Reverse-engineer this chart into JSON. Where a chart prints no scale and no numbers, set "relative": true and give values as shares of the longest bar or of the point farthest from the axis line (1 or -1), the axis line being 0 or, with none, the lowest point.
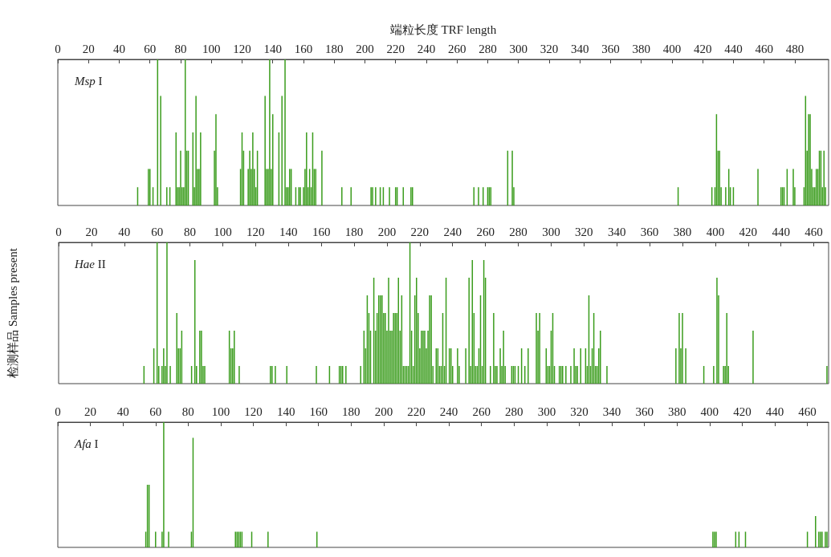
{
  "chart_data": [
    {
      "type": "bar",
      "relative": true,
      "title": "Msp I",
      "xlabel": "端粒长度 TRF length",
      "color": "#3a9c1c",
      "xlim": [
        0,
        502
      ],
      "xticks": [
        0,
        20,
        40,
        60,
        80,
        100,
        120,
        140,
        160,
        180,
        200,
        220,
        240,
        260,
        280,
        300,
        320,
        340,
        360,
        380,
        400,
        420,
        440,
        460,
        480
      ],
      "x": [
        52,
        59,
        60,
        62,
        65,
        67,
        71,
        73,
        77,
        78,
        79,
        80,
        81,
        82,
        83,
        84,
        85,
        88,
        89,
        90,
        91,
        92,
        93,
        102,
        103,
        104,
        119,
        120,
        121,
        124,
        125,
        126,
        127,
        128,
        129,
        130,
        135,
        136,
        137,
        138,
        139,
        140,
        144,
        146,
        148,
        149,
        150,
        151,
        152,
        155,
        157,
        158,
        160,
        161,
        162,
        163,
        164,
        165,
        166,
        167,
        168,
        172,
        185,
        191,
        204,
        205,
        207,
        210,
        212,
        216,
        220,
        221,
        225,
        230,
        231,
        271,
        274,
        277,
        280,
        281,
        282,
        293,
        296,
        297,
        404,
        426,
        428,
        429,
        430,
        431,
        432,
        435,
        437,
        438,
        440,
        456,
        471,
        472,
        473,
        475,
        479,
        480,
        486,
        487,
        488,
        489,
        490,
        491,
        492,
        493,
        494,
        495,
        496,
        497,
        498,
        499,
        500
      ],
      "values": [
        0.125,
        0.25,
        0.25,
        0.125,
        1,
        0.75,
        0.125,
        0.125,
        0.5,
        0.125,
        0.125,
        0.375,
        0.125,
        0.125,
        1,
        0.375,
        0.375,
        0.5,
        0.125,
        0.75,
        0.25,
        0.25,
        0.5,
        0.375,
        0.625,
        0.125,
        0.25,
        0.5,
        0.375,
        0.25,
        0.375,
        0.25,
        0.5,
        0.25,
        0.125,
        0.375,
        0.75,
        0.25,
        0.25,
        1,
        0.25,
        0.625,
        0.5,
        0.75,
        1,
        0.125,
        0.125,
        0.25,
        0.25,
        0.125,
        0.125,
        0.125,
        0.125,
        0.25,
        0.5,
        0.125,
        0.25,
        0.125,
        0.5,
        0.25,
        0.25,
        0.375,
        0.125,
        0.125,
        0.125,
        0.125,
        0.125,
        0.125,
        0.125,
        0.125,
        0.125,
        0.125,
        0.125,
        0.125,
        0.125,
        0.125,
        0.125,
        0.125,
        0.125,
        0.125,
        0.125,
        0.375,
        0.375,
        0.125,
        0.125,
        0.125,
        0.125,
        0.625,
        0.375,
        0.375,
        0.125,
        0.125,
        0.25,
        0.125,
        0.125,
        0.25,
        0.125,
        0.125,
        0.125,
        0.25,
        0.25,
        0.125,
        0.125,
        0.75,
        0.375,
        0.625,
        0.625,
        0.25,
        0.125,
        0.125,
        0.25,
        0.25,
        0.375,
        0.375,
        0.125,
        0.375,
        0.125
      ]
    },
    {
      "type": "bar",
      "relative": true,
      "title": "Hae II",
      "ylabel": "检测样品 Samples present",
      "color": "#3a9c1c",
      "xlim": [
        0,
        469
      ],
      "xticks": [
        0,
        20,
        40,
        60,
        80,
        100,
        120,
        140,
        160,
        180,
        200,
        220,
        240,
        260,
        280,
        300,
        320,
        340,
        360,
        380,
        400,
        420,
        440,
        460
      ],
      "x": [
        52,
        58,
        60,
        61,
        63,
        64,
        65,
        66,
        68,
        72,
        73,
        74,
        75,
        81,
        83,
        84,
        86,
        87,
        88,
        89,
        104,
        105,
        106,
        107,
        110,
        129,
        130,
        132,
        139,
        157,
        165,
        171,
        172,
        173,
        175,
        184,
        186,
        187,
        188,
        189,
        190,
        192,
        193,
        194,
        195,
        196,
        197,
        198,
        199,
        200,
        201,
        202,
        203,
        204,
        205,
        206,
        207,
        208,
        209,
        210,
        211,
        212,
        213,
        214,
        215,
        216,
        217,
        218,
        219,
        220,
        221,
        222,
        223,
        224,
        225,
        226,
        227,
        228,
        230,
        231,
        232,
        233,
        234,
        235,
        236,
        238,
        239,
        240,
        243,
        244,
        248,
        250,
        251,
        252,
        253,
        254,
        255,
        256,
        257,
        258,
        259,
        260,
        263,
        265,
        266,
        267,
        269,
        270,
        271,
        272,
        276,
        277,
        278,
        280,
        282,
        284,
        286,
        291,
        292,
        293,
        297,
        298,
        299,
        300,
        301,
        302,
        305,
        306,
        307,
        309,
        312,
        314,
        315,
        316,
        318,
        321,
        322,
        323,
        324,
        325,
        326,
        327,
        328,
        329,
        330,
        334,
        376,
        378,
        379,
        380,
        382,
        393,
        399,
        401,
        402,
        405,
        406,
        407,
        408,
        423,
        468
      ],
      "values": [
        0.125,
        0.25,
        1,
        0.125,
        0.125,
        0.25,
        0.125,
        1,
        0.125,
        0.5,
        0.25,
        0.25,
        0.375,
        0.125,
        0.875,
        0.125,
        0.375,
        0.375,
        0.125,
        0.125,
        0.375,
        0.25,
        0.25,
        0.375,
        0.125,
        0.125,
        0.125,
        0.125,
        0.125,
        0.125,
        0.125,
        0.125,
        0.125,
        0.125,
        0.125,
        0.125,
        0.375,
        0.25,
        0.625,
        0.5,
        0.375,
        0.75,
        0.375,
        0.5,
        0.625,
        0.625,
        0.625,
        0.5,
        0.5,
        0.375,
        0.75,
        0.375,
        0.375,
        0.5,
        0.5,
        0.5,
        0.75,
        0.375,
        0.625,
        0.125,
        0.125,
        0.125,
        0.125,
        1,
        0.375,
        0.125,
        0.625,
        0.75,
        0.5,
        0.25,
        0.375,
        0.375,
        0.375,
        0.25,
        0.375,
        0.625,
        0.625,
        0.125,
        0.25,
        0.25,
        0.125,
        0.125,
        0.5,
        0.125,
        0.75,
        0.25,
        0.25,
        0.125,
        0.25,
        0.125,
        0.25,
        0.75,
        0.125,
        0.875,
        0.5,
        0.125,
        0.125,
        0.25,
        0.625,
        0.125,
        0.875,
        0.75,
        0.125,
        0.5,
        0.125,
        0.125,
        0.25,
        0.125,
        0.375,
        0.125,
        0.125,
        0.125,
        0.125,
        0.125,
        0.25,
        0.125,
        0.25,
        0.5,
        0.375,
        0.5,
        0.25,
        0.125,
        0.125,
        0.375,
        0.5,
        0.125,
        0.125,
        0.125,
        0.125,
        0.125,
        0.125,
        0.25,
        0.125,
        0.125,
        0.25,
        0.25,
        0.125,
        0.625,
        0.125,
        0.25,
        0.5,
        0.125,
        0.125,
        0.25,
        0.375,
        0.125,
        0.25,
        0.5,
        0.25,
        0.5,
        0.25,
        0.125,
        0.125,
        0.75,
        0.625,
        0.125,
        0.125,
        0.5,
        0.125,
        0.375,
        0.125
      ]
    },
    {
      "type": "bar",
      "relative": true,
      "title": "Afa I",
      "color": "#3a9c1c",
      "xlim": [
        0,
        473
      ],
      "xticks": [
        0,
        20,
        40,
        60,
        80,
        100,
        120,
        140,
        160,
        180,
        200,
        220,
        240,
        260,
        280,
        300,
        320,
        340,
        360,
        380,
        400,
        420,
        440,
        460
      ],
      "x": [
        54,
        55,
        56,
        60,
        64,
        65,
        68,
        82,
        83,
        109,
        110,
        111,
        112,
        113,
        119,
        129,
        159,
        402,
        403,
        404,
        416,
        418,
        422,
        460,
        465,
        467,
        468,
        469,
        471,
        472
      ],
      "values": [
        0.125,
        0.5,
        0.5,
        0.125,
        0.125,
        1,
        0.125,
        0.125,
        0.875,
        0.125,
        0.125,
        0.125,
        0.125,
        0.125,
        0.125,
        0.125,
        0.125,
        0.125,
        0.125,
        0.125,
        0.125,
        0.125,
        0.125,
        0.125,
        0.25,
        0.125,
        0.125,
        0.125,
        0.125,
        0.125
      ]
    }
  ]
}
